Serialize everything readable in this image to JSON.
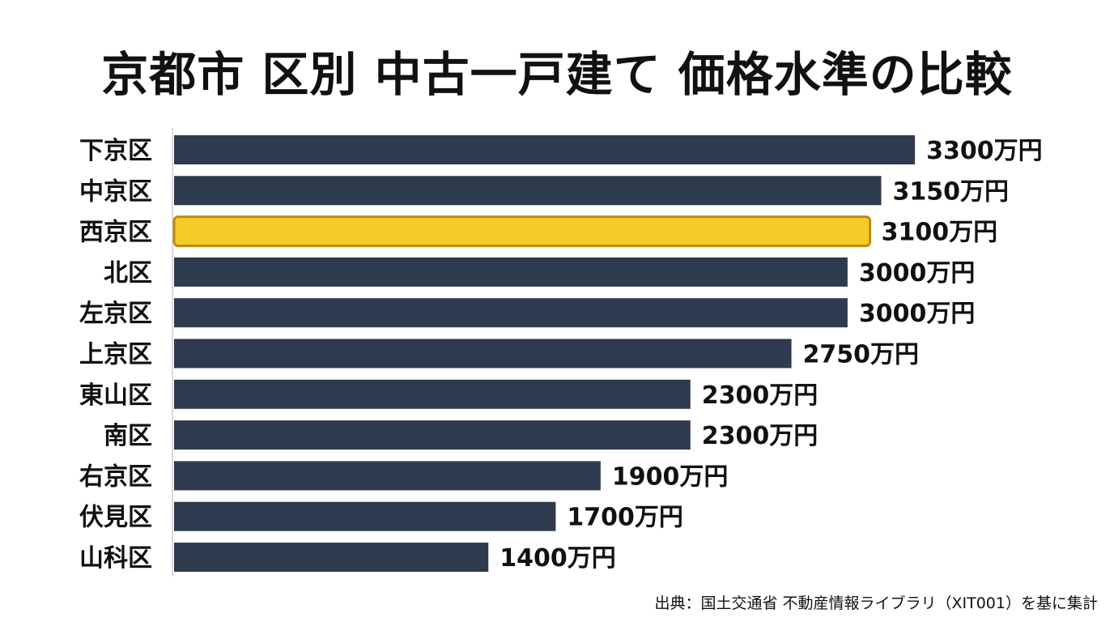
{
  "colors": {
    "bar": "#2e3a4e",
    "highlight": "#f5cb2a",
    "highlight_border": "#b58e10",
    "axis": "#d0d0d0"
  },
  "chart_data": {
    "type": "bar",
    "orientation": "horizontal",
    "title": "京都市 区別 中古一戸建て 価格水準の比較",
    "unit": "万円",
    "categories": [
      "下京区",
      "中京区",
      "西京区",
      "北区",
      "左京区",
      "上京区",
      "東山区",
      "南区",
      "右京区",
      "伏見区",
      "山科区"
    ],
    "values": [
      3300,
      3150,
      3100,
      3000,
      3000,
      2750,
      2300,
      2300,
      1900,
      1700,
      1400
    ],
    "value_labels": [
      "3300万円",
      "3150万円",
      "3100万円",
      "3000万円",
      "3000万円",
      "2750万円",
      "2300万円",
      "2300万円",
      "1900万円",
      "1700万円",
      "1400万円"
    ],
    "highlight_category": "西京区",
    "xlim": [
      0,
      3400
    ],
    "grid": false,
    "legend": "none"
  },
  "source": "出典：国土交通省 不動産情報ライブラリ（XIT001）を基に集計"
}
